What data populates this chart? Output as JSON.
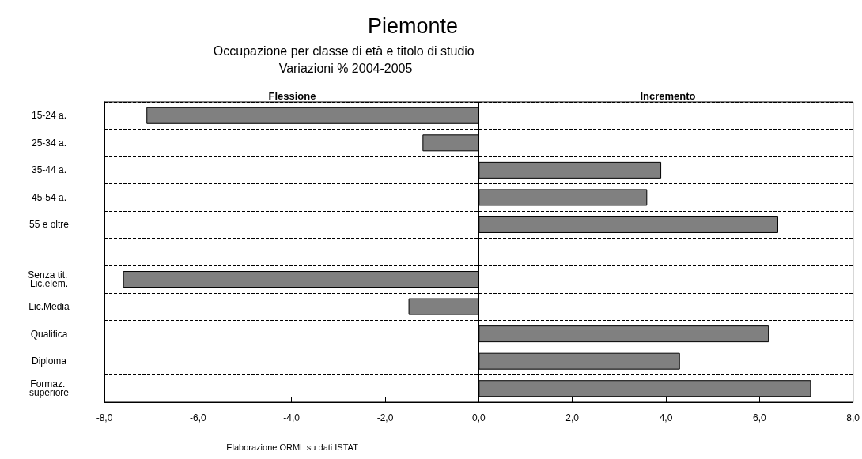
{
  "chart_data": {
    "type": "bar",
    "orientation": "horizontal",
    "title": "Piemonte",
    "subtitle": "Occupazione per classe di età e titolo di studio Variazioni % 2004-2005",
    "categories": [
      "15-24 a.",
      "25-34 a.",
      "35-44 a.",
      "45-54 a.",
      "55 e oltre",
      null,
      "Senza tit. Lic.elem.",
      "Lic.Media",
      "Qualifica",
      "Diploma",
      "Formaz. superiore"
    ],
    "values": [
      -7.1,
      -1.2,
      3.9,
      3.6,
      6.4,
      null,
      -7.6,
      -1.5,
      6.2,
      4.3,
      7.1
    ],
    "color": "#808080",
    "xlim": [
      -8,
      8
    ],
    "xticks": [
      {
        "value": -8,
        "label": "-8,0"
      },
      {
        "value": -6,
        "label": "-6,0"
      },
      {
        "value": -4,
        "label": "-4,0"
      },
      {
        "value": -2,
        "label": "-2,0"
      },
      {
        "value": 0,
        "label": "0,0"
      },
      {
        "value": 2,
        "label": "2,0"
      },
      {
        "value": 4,
        "label": "4,0"
      },
      {
        "value": 6,
        "label": "6,0"
      },
      {
        "value": 8,
        "label": "8,0"
      }
    ],
    "ref_lines": [
      {
        "axis": "x",
        "value": 0,
        "color": "#000000"
      }
    ],
    "grid": "y",
    "line_style": "dashed",
    "annotations": [
      "Flessione",
      "Incremento",
      "Elaborazione ORML su dati ISTAT"
    ]
  }
}
